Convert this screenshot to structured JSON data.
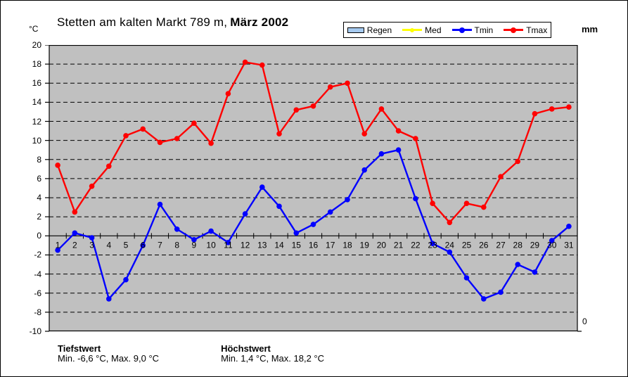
{
  "title": {
    "location_part": "Stetten am kalten Markt 789 m,",
    "date_part": "März 2002"
  },
  "axes": {
    "left_unit": "°C",
    "right_unit": "mm",
    "right_axis_bottom_label": "0"
  },
  "legend": {
    "position": "top-right",
    "items": [
      {
        "label": "Regen",
        "type": "bar",
        "color": "#A6CAF0",
        "border": "#000000"
      },
      {
        "label": "Med",
        "type": "line",
        "color": "#FFFF00"
      },
      {
        "label": "Tmin",
        "type": "line",
        "color": "#0000FF"
      },
      {
        "label": "Tmax",
        "type": "line",
        "color": "#FF0000"
      }
    ]
  },
  "chart_data": {
    "type": "line",
    "title": "Stetten am kalten Markt 789 m, März 2002",
    "x": [
      1,
      2,
      3,
      4,
      5,
      6,
      7,
      8,
      9,
      10,
      11,
      12,
      13,
      14,
      15,
      16,
      17,
      18,
      19,
      20,
      21,
      22,
      23,
      24,
      25,
      26,
      27,
      28,
      29,
      30,
      31
    ],
    "xlabel": "",
    "ylabel": "°C",
    "ylabel_right": "mm",
    "ylim": [
      -10,
      20
    ],
    "ytick_step": 2,
    "grid": "horizontal-dashed",
    "plot_bg": "#C0C0C0",
    "series": [
      {
        "name": "Tmin",
        "color": "#0000FF",
        "values": [
          -1.5,
          0.3,
          -0.2,
          -6.6,
          -4.6,
          -1.0,
          3.3,
          0.7,
          -0.4,
          0.5,
          -0.7,
          2.3,
          5.1,
          3.1,
          0.3,
          1.2,
          2.5,
          3.8,
          6.9,
          8.6,
          9.0,
          3.9,
          -0.8,
          -1.7,
          -4.4,
          -6.6,
          -5.9,
          -3.0,
          -3.8,
          -0.5,
          1.0
        ]
      },
      {
        "name": "Tmax",
        "color": "#FF0000",
        "values": [
          7.4,
          2.5,
          5.2,
          7.3,
          10.5,
          11.2,
          9.8,
          10.2,
          11.8,
          9.7,
          14.9,
          18.2,
          17.9,
          10.7,
          13.2,
          13.6,
          15.6,
          16.0,
          10.7,
          13.3,
          11.0,
          10.2,
          3.4,
          1.4,
          3.4,
          3.0,
          6.2,
          7.8,
          12.8,
          13.3,
          13.5
        ]
      }
    ]
  },
  "stats": {
    "low": {
      "title": "Tiefstwert",
      "detail": "Min. -6,6 °C, Max. 9,0 °C"
    },
    "high": {
      "title": "Höchstwert",
      "detail": "Min. 1,4 °C, Max. 18,2 °C"
    }
  }
}
